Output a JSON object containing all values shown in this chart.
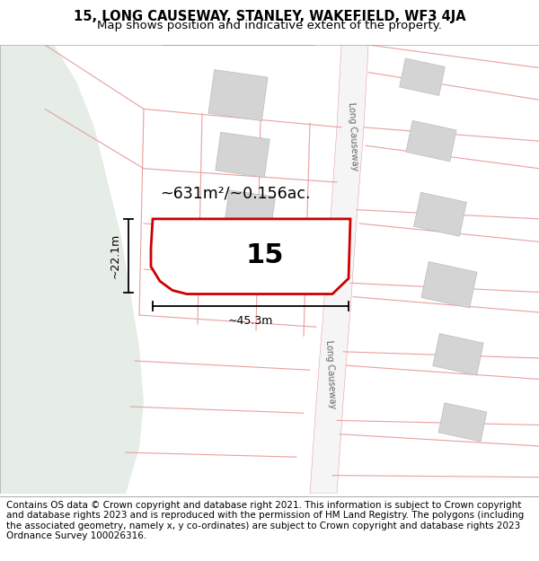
{
  "title_line1": "15, LONG CAUSEWAY, STANLEY, WAKEFIELD, WF3 4JA",
  "title_line2": "Map shows position and indicative extent of the property.",
  "footer_text": "Contains OS data © Crown copyright and database right 2021. This information is subject to Crown copyright and database rights 2023 and is reproduced with the permission of HM Land Registry. The polygons (including the associated geometry, namely x, y co-ordinates) are subject to Crown copyright and database rights 2023 Ordnance Survey 100026316.",
  "bg_map_color": "#f7f7f7",
  "bg_left_color": "#e6ece6",
  "road_color": "#e8a0a0",
  "road_lw": 0.8,
  "road_fill": "#f5f5f5",
  "road_edge": "#cccccc",
  "highlight_color": "#cc0000",
  "highlight_lw": 2.0,
  "building_color": "#d4d4d4",
  "building_edge": "#bbbbbb",
  "building_lw": 0.5,
  "label_15": "15",
  "area_label": "~631m²/~0.156ac.",
  "dim_width": "~45.3m",
  "dim_height": "~22.1m",
  "road_label": "Long Causeway",
  "title_fontsize": 10.5,
  "subtitle_fontsize": 9.5,
  "footer_fontsize": 7.5
}
